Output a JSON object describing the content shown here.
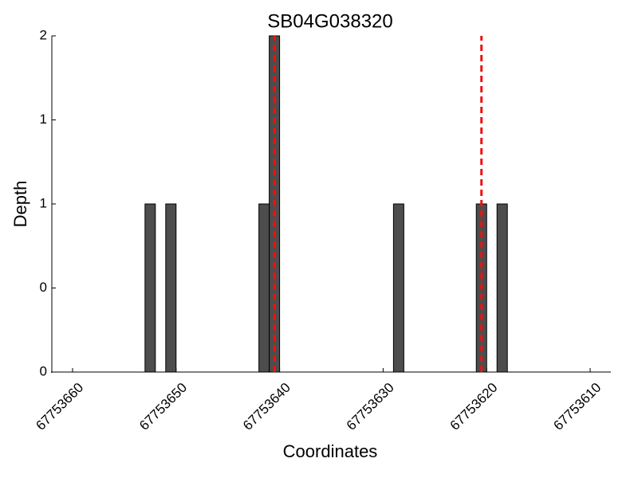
{
  "chart_data": {
    "type": "bar",
    "title": "SB04G038320",
    "x_label": "Coordinates",
    "y_label": "Depth",
    "x": [
      67753652.5,
      67753650.5,
      67753641.5,
      67753640.5,
      67753628.5,
      67753620.5,
      67753618.5
    ],
    "values": [
      1,
      1,
      1,
      2,
      1,
      1,
      1
    ],
    "color": "#4d4d4d",
    "edge_color": "#000000",
    "xlim": [
      67753662,
      67753608
    ],
    "xticks": [
      67753660,
      67753650,
      67753640,
      67753630,
      67753620,
      67753610
    ],
    "ylim": [
      0,
      2
    ],
    "yticks": [
      0,
      {
        "value": 0.5,
        "label": "0"
      },
      1,
      {
        "value": 1.5,
        "label": "1"
      },
      2
    ],
    "vlines": [
      67753640.5,
      67753620.5
    ],
    "vline_color": "#ee1111",
    "grid": false
  }
}
